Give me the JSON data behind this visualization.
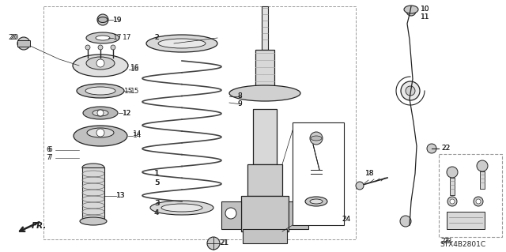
{
  "bg_color": "#ffffff",
  "diagram_code": "STX4B2801C",
  "line_color": "#222222",
  "gray1": "#cccccc",
  "gray2": "#aaaaaa",
  "gray3": "#888888",
  "border_dash": "#aaaaaa"
}
